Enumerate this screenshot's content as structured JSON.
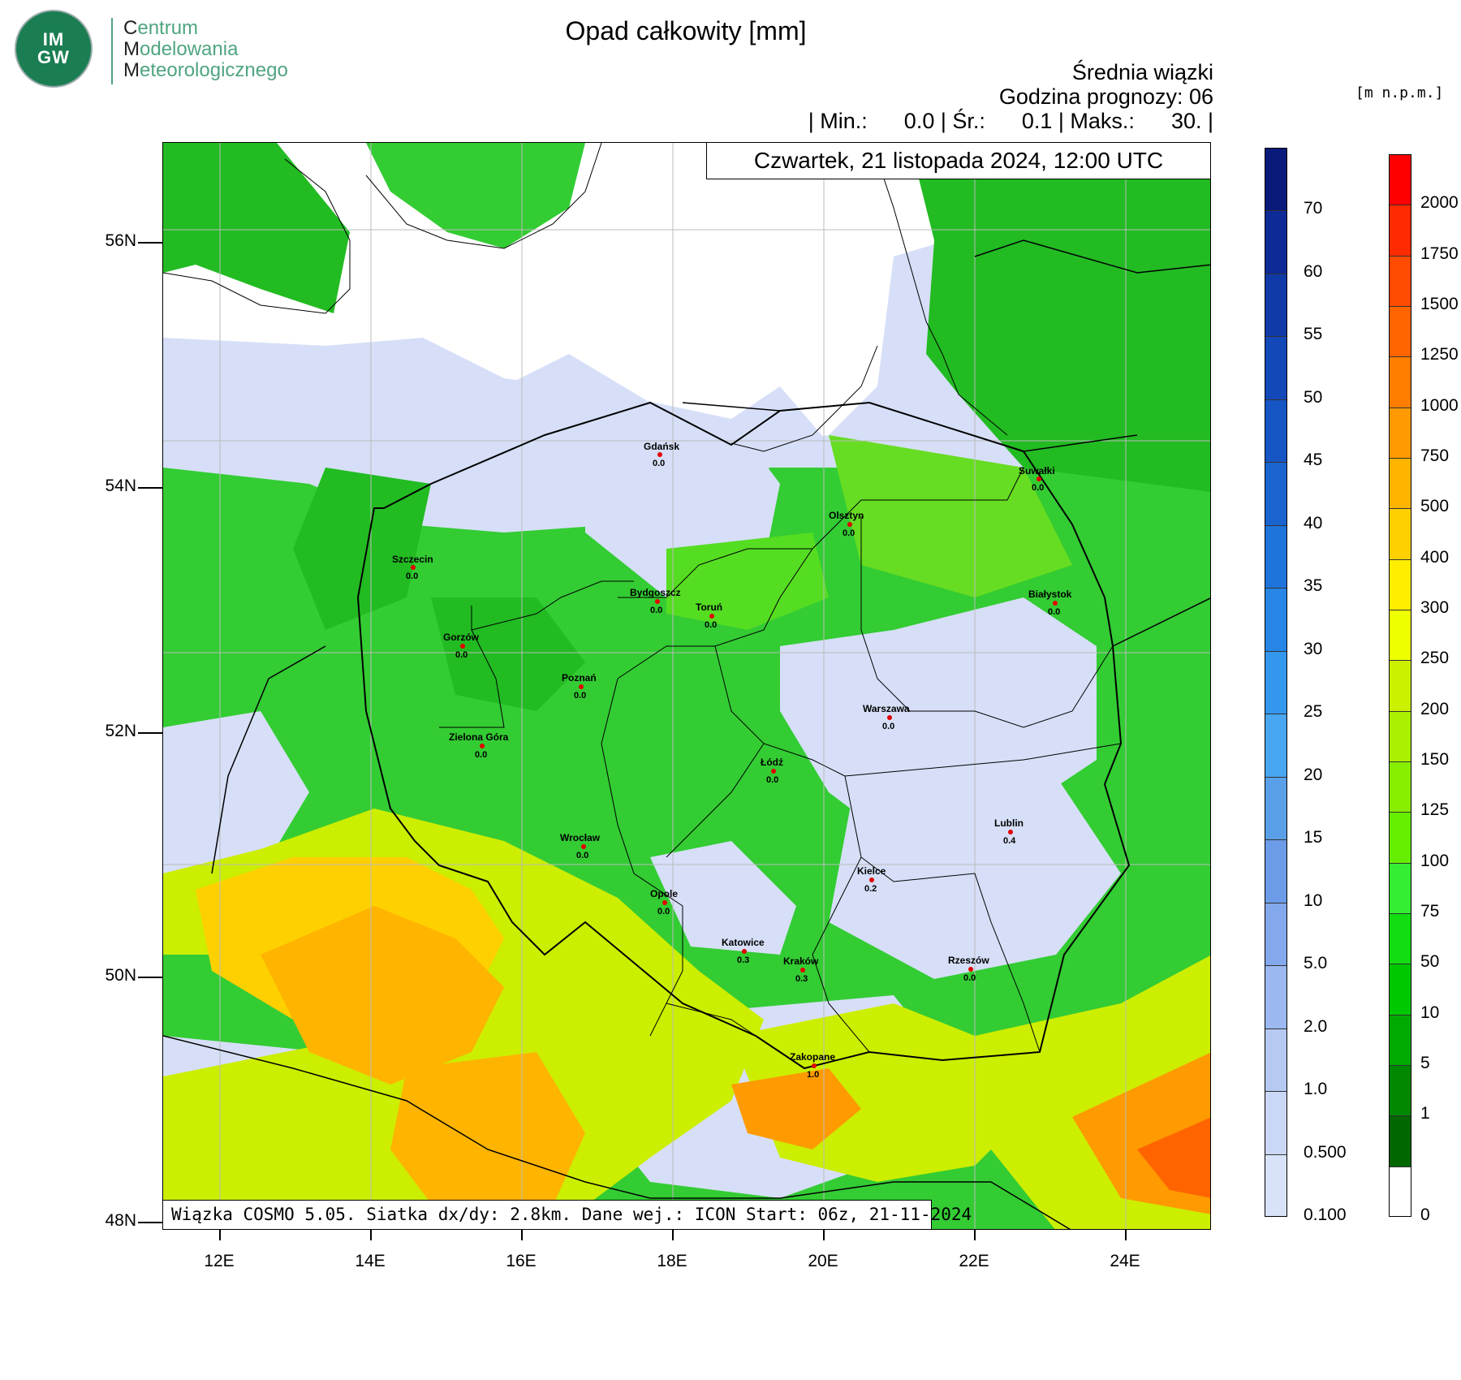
{
  "org": {
    "logo_text_1": "IM",
    "logo_text_2": "GW",
    "line1_initial": "C",
    "line1_rest": "entrum",
    "line2_initial": "M",
    "line2_rest": "odelowania",
    "line3_initial": "M",
    "line3_rest": "eteorologicznego"
  },
  "header": {
    "title": "Opad całkowity [mm]",
    "ensemble": "Średnia wiązki",
    "forecast_hour": "Godzina prognozy: 06",
    "stats": "| Min.:      0.0 | Śr.:      0.1 | Maks.:      30. |",
    "stats_values": {
      "min": 0.0,
      "mean": 0.1,
      "max": 30
    }
  },
  "date_label": "Czwartek, 21 listopada 2024, 12:00 UTC",
  "footer": "Wiązka COSMO 5.05. Siatka dx/dy: 2.8km. Dane wej.: ICON Start: 06z, 21-11-2024",
  "axes": {
    "lat_labels": [
      "56N",
      "54N",
      "52N",
      "50N",
      "48N"
    ],
    "lon_labels": [
      "12E",
      "14E",
      "16E",
      "18E",
      "20E",
      "22E",
      "24E"
    ]
  },
  "colorbar_precip": {
    "labels": [
      "70",
      "60",
      "55",
      "50",
      "45",
      "40",
      "35",
      "30",
      "25",
      "20",
      "15",
      "10",
      "5.0",
      "2.0",
      "1.0",
      "0.500",
      "0.100"
    ],
    "colors": [
      "#0a1a7a",
      "#0d2a96",
      "#103aa8",
      "#1248b8",
      "#1556c4",
      "#1a64d0",
      "#1f74dc",
      "#2786e6",
      "#3397ee",
      "#49a6f0",
      "#5aa0e8",
      "#6c9ce8",
      "#84a8ec",
      "#9cb8f0",
      "#b6c9f3",
      "#cbd7f6",
      "#d8e2f8"
    ]
  },
  "colorbar_elev": {
    "unit": "[m n.p.m.]",
    "labels": [
      "2000",
      "1750",
      "1500",
      "1250",
      "1000",
      "750",
      "500",
      "400",
      "300",
      "250",
      "200",
      "150",
      "125",
      "100",
      "75",
      "50",
      "10",
      "5",
      "1",
      "0"
    ],
    "colors": [
      "#ff0000",
      "#ff2a00",
      "#ff4a00",
      "#ff6400",
      "#ff7e00",
      "#ff9a00",
      "#ffb400",
      "#ffd000",
      "#ffee00",
      "#eeff00",
      "#ccf000",
      "#aaf000",
      "#88ee00",
      "#66ee00",
      "#33ee33",
      "#11dd11",
      "#00c800",
      "#00aa00",
      "#008800",
      "#006600",
      "#ffffff"
    ]
  },
  "cities": [
    {
      "name": "Gdańsk",
      "value": "0.0"
    },
    {
      "name": "Suwałki",
      "value": "0.0"
    },
    {
      "name": "Olsztyn",
      "value": "0.0"
    },
    {
      "name": "Szczecin",
      "value": "0.0"
    },
    {
      "name": "Bydgoszcz",
      "value": "0.0"
    },
    {
      "name": "Toruń",
      "value": "0.0"
    },
    {
      "name": "Białystok",
      "value": "0.0"
    },
    {
      "name": "Gorzów",
      "value": "0.0"
    },
    {
      "name": "Poznań",
      "value": "0.0"
    },
    {
      "name": "Warszawa",
      "value": "0.0"
    },
    {
      "name": "Zielona Góra",
      "value": "0.0"
    },
    {
      "name": "Łódź",
      "value": "0.0"
    },
    {
      "name": "Lublin",
      "value": "0.4"
    },
    {
      "name": "Wrocław",
      "value": "0.0"
    },
    {
      "name": "Kielce",
      "value": "0.2"
    },
    {
      "name": "Opole",
      "value": "0.0"
    },
    {
      "name": "Katowice",
      "value": "0.3"
    },
    {
      "name": "Kraków",
      "value": "0.3"
    },
    {
      "name": "Rzeszów",
      "value": "0.0"
    },
    {
      "name": "Zakopane",
      "value": "1.0"
    }
  ]
}
